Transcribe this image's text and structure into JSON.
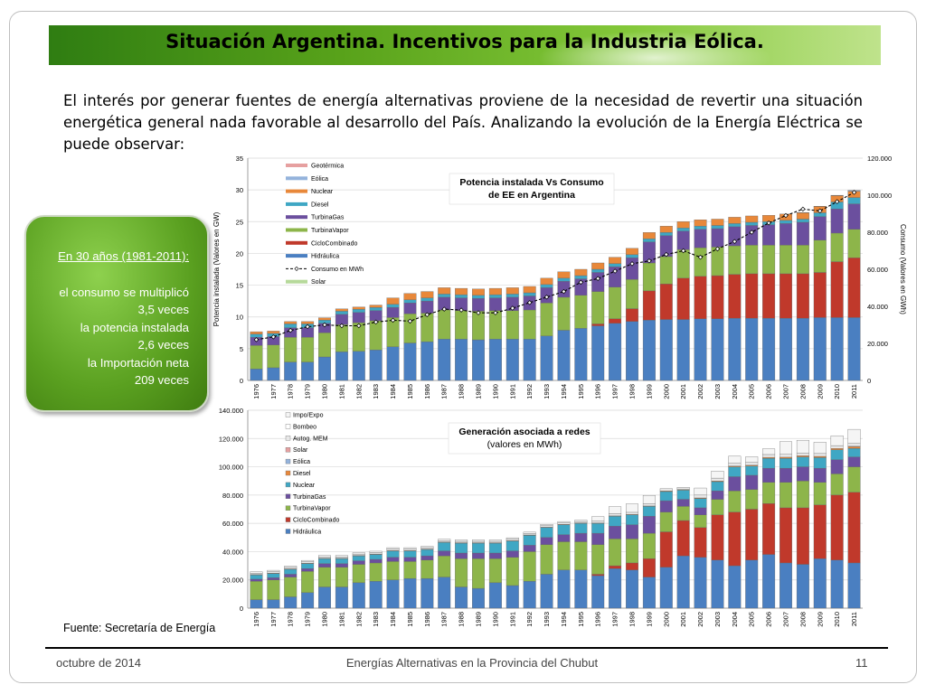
{
  "slide": {
    "title": "Situación Argentina. Incentivos para la Industria Eólica.",
    "intro": "El interés por generar fuentes de energía alternativas proviene de la necesidad de revertir una situación energética general nada favorable al desarrollo del País. Analizando la evolución de la Energía Eléctrica se puede observar:",
    "callout": {
      "heading": "En 30 años (1981-2011):",
      "lines": [
        "el consumo se multiplicó",
        "3,5 veces",
        "la potencia instalada",
        "2,6 veces",
        "la Importación neta",
        "209 veces"
      ]
    },
    "source": "Fuente: Secretaría de Energía",
    "footer": {
      "date": "octubre de 2014",
      "center": "Energías Alternativas en la Provincia del Chubut",
      "page": "11"
    },
    "colors": {
      "banner_dark": "#2f7d12",
      "banner_light": "#bfe38c",
      "callout": "#5aa020"
    }
  },
  "chart_data": [
    {
      "type": "bar",
      "stacked": true,
      "title_lines": [
        "Potencia instalada Vs Consumo",
        "de EE en Argentina"
      ],
      "ylabel": "Potencia instalada (Valores en GW)",
      "y2label": "Consumo (Valores en GWh)",
      "ylim": [
        0,
        35
      ],
      "yticks": [
        "0",
        "5",
        "10",
        "15",
        "20",
        "25",
        "30",
        "35"
      ],
      "y2lim": [
        0,
        120000
      ],
      "y2ticks": [
        "0",
        "20.000",
        "40.000",
        "60.000",
        "80.000",
        "100.000",
        "120.000"
      ],
      "grid": true,
      "legend_position": "top-left",
      "categories": [
        "1976",
        "1977",
        "1978",
        "1979",
        "1980",
        "1981",
        "1982",
        "1983",
        "1984",
        "1985",
        "1986",
        "1987",
        "1988",
        "1989",
        "1990",
        "1991",
        "1992",
        "1993",
        "1994",
        "1995",
        "1996",
        "1997",
        "1998",
        "1999",
        "2000",
        "2001",
        "2002",
        "2003",
        "2004",
        "2005",
        "2006",
        "2007",
        "2008",
        "2009",
        "2010",
        "2011"
      ],
      "series": [
        {
          "name": "Hidráulica",
          "color": "#4a7fc1",
          "values": [
            1.8,
            2.0,
            2.9,
            2.9,
            3.7,
            4.5,
            4.6,
            4.8,
            5.3,
            5.9,
            6.1,
            6.5,
            6.5,
            6.4,
            6.5,
            6.5,
            6.5,
            7.0,
            7.9,
            8.2,
            8.6,
            9.0,
            9.3,
            9.5,
            9.6,
            9.6,
            9.7,
            9.7,
            9.8,
            9.8,
            9.8,
            9.8,
            9.8,
            9.9,
            9.9,
            9.9
          ]
        },
        {
          "name": "CicloCombinado",
          "color": "#c0392b",
          "values": [
            0,
            0,
            0,
            0,
            0,
            0,
            0,
            0,
            0,
            0,
            0,
            0,
            0,
            0,
            0,
            0,
            0,
            0,
            0,
            0,
            0.3,
            0.7,
            2.0,
            4.6,
            5.6,
            6.5,
            6.7,
            6.8,
            6.9,
            7.0,
            7.0,
            7.0,
            7.0,
            7.1,
            8.8,
            9.4
          ]
        },
        {
          "name": "TurbinaVapor",
          "color": "#8db54a",
          "values": [
            3.7,
            3.6,
            3.9,
            3.9,
            3.8,
            4.3,
            4.5,
            4.6,
            4.6,
            4.6,
            4.5,
            4.6,
            4.5,
            4.5,
            4.5,
            4.5,
            4.6,
            5.2,
            5.2,
            5.2,
            5.1,
            5.0,
            4.6,
            4.4,
            4.3,
            4.5,
            4.5,
            4.5,
            4.5,
            4.5,
            4.5,
            4.5,
            4.5,
            5.1,
            4.5,
            4.5
          ]
        },
        {
          "name": "TurbinaGas",
          "color": "#6b4f9e",
          "values": [
            1.3,
            1.3,
            1.5,
            1.5,
            1.5,
            1.6,
            1.6,
            1.6,
            1.6,
            1.7,
            1.9,
            2.0,
            2.0,
            2.0,
            2.0,
            2.1,
            2.2,
            2.4,
            2.5,
            2.6,
            3.0,
            3.2,
            3.4,
            3.3,
            3.3,
            2.9,
            2.9,
            2.9,
            3.0,
            3.1,
            3.2,
            3.4,
            3.6,
            3.7,
            3.8,
            4.0
          ]
        },
        {
          "name": "Diesel",
          "color": "#3fa7c4",
          "values": [
            0.5,
            0.5,
            0.6,
            0.6,
            0.5,
            0.5,
            0.5,
            0.5,
            0.5,
            0.5,
            0.5,
            0.5,
            0.5,
            0.5,
            0.5,
            0.5,
            0.5,
            0.5,
            0.5,
            0.5,
            0.5,
            0.5,
            0.5,
            0.5,
            0.5,
            0.5,
            0.5,
            0.5,
            0.5,
            0.5,
            0.5,
            0.5,
            0.5,
            0.6,
            1.1,
            1.0
          ]
        },
        {
          "name": "Nuclear",
          "color": "#e8883a",
          "values": [
            0.37,
            0.37,
            0.37,
            0.37,
            0.37,
            0.37,
            0.37,
            0.37,
            1.0,
            1.0,
            1.0,
            1.0,
            1.0,
            1.0,
            1.0,
            1.0,
            1.0,
            1.0,
            1.0,
            1.0,
            1.0,
            1.0,
            1.0,
            1.0,
            1.0,
            1.0,
            1.0,
            1.0,
            1.0,
            1.0,
            1.0,
            1.0,
            1.0,
            1.0,
            1.0,
            1.0
          ]
        },
        {
          "name": "Eólica",
          "color": "#94b3dc",
          "values": [
            0,
            0,
            0,
            0,
            0,
            0,
            0,
            0,
            0,
            0,
            0,
            0,
            0,
            0,
            0,
            0,
            0,
            0,
            0,
            0,
            0,
            0,
            0,
            0,
            0,
            0,
            0,
            0,
            0,
            0,
            0,
            0,
            0.03,
            0.03,
            0.05,
            0.11
          ]
        },
        {
          "name": "Geotérmica",
          "color": "#e6a0a0",
          "values": [
            0,
            0,
            0,
            0,
            0,
            0,
            0,
            0,
            0,
            0,
            0,
            0,
            0,
            0,
            0,
            0,
            0,
            0,
            0,
            0,
            0,
            0,
            0,
            0,
            0,
            0,
            0,
            0,
            0,
            0,
            0,
            0,
            0,
            0,
            0,
            0
          ]
        },
        {
          "name": "Solar",
          "color": "#b6d99a",
          "values": [
            0,
            0,
            0,
            0,
            0,
            0,
            0,
            0,
            0,
            0,
            0,
            0,
            0,
            0,
            0,
            0,
            0,
            0,
            0,
            0,
            0,
            0,
            0,
            0,
            0,
            0,
            0,
            0,
            0,
            0,
            0,
            0,
            0,
            0,
            0,
            0
          ]
        }
      ],
      "line_series": {
        "name": "Consumo en MWh",
        "axis": "secondary",
        "values": [
          22000,
          23500,
          27000,
          29000,
          30000,
          29500,
          29500,
          31500,
          32500,
          32000,
          35500,
          38500,
          38000,
          36500,
          36500,
          39000,
          42000,
          45000,
          48000,
          53000,
          55000,
          59000,
          63000,
          64500,
          68000,
          70000,
          66500,
          71000,
          75000,
          80000,
          85000,
          89000,
          92500,
          91500,
          96500,
          101500
        ]
      }
    },
    {
      "type": "bar",
      "stacked": true,
      "title_lines": [
        "Generación asociada a redes",
        "(valores en MWh)"
      ],
      "ylim": [
        0,
        140000
      ],
      "yticks": [
        "0",
        "20.000",
        "40.000",
        "60.000",
        "80.000",
        "100.000",
        "120.000",
        "140.000"
      ],
      "grid": true,
      "legend_position": "top-left",
      "categories": [
        "1976",
        "1977",
        "1978",
        "1979",
        "1980",
        "1981",
        "1982",
        "1983",
        "1984",
        "1985",
        "1986",
        "1987",
        "1988",
        "1989",
        "1990",
        "1991",
        "1992",
        "1993",
        "1994",
        "1995",
        "1996",
        "1997",
        "1998",
        "1999",
        "2000",
        "2001",
        "2002",
        "2003",
        "2004",
        "2005",
        "2006",
        "2007",
        "2008",
        "2009",
        "2010",
        "2011"
      ],
      "series": [
        {
          "name": "Hidráulica",
          "color": "#4a7fc1",
          "values": [
            6000,
            6000,
            8000,
            11000,
            15000,
            15000,
            18000,
            19000,
            20000,
            21000,
            21000,
            22000,
            15000,
            14000,
            18000,
            16000,
            19000,
            24000,
            27000,
            27000,
            23000,
            28000,
            27000,
            22000,
            29000,
            37000,
            36000,
            34000,
            30000,
            34000,
            38000,
            32000,
            31000,
            35000,
            34000,
            32000
          ]
        },
        {
          "name": "CicloCombinado",
          "color": "#c0392b",
          "values": [
            0,
            0,
            0,
            0,
            0,
            0,
            0,
            0,
            0,
            0,
            0,
            0,
            0,
            0,
            0,
            0,
            0,
            0,
            0,
            0,
            1000,
            2000,
            5000,
            13000,
            25000,
            25000,
            21000,
            32000,
            38000,
            36000,
            36000,
            39000,
            40000,
            38000,
            46000,
            50000
          ]
        },
        {
          "name": "TurbinaVapor",
          "color": "#8db54a",
          "values": [
            13000,
            14000,
            14000,
            15000,
            14000,
            14000,
            13000,
            13000,
            13000,
            12000,
            13000,
            15000,
            20000,
            21000,
            17000,
            20000,
            21000,
            21000,
            20000,
            20000,
            21000,
            19000,
            17000,
            18000,
            14000,
            10000,
            9000,
            11000,
            15000,
            14000,
            15000,
            18000,
            19000,
            16000,
            15000,
            18000
          ]
        },
        {
          "name": "TurbinaGas",
          "color": "#6b4f9e",
          "values": [
            1500,
            1500,
            2000,
            2000,
            2500,
            2500,
            2500,
            2500,
            3000,
            3000,
            3000,
            3500,
            4000,
            4000,
            4000,
            4500,
            4500,
            5000,
            5000,
            6000,
            8000,
            9000,
            10000,
            12000,
            8000,
            5000,
            5000,
            6000,
            10000,
            10000,
            10000,
            10000,
            10000,
            10000,
            10000,
            7000
          ]
        },
        {
          "name": "Nuclear",
          "color": "#3fa7c4",
          "values": [
            3000,
            3000,
            3500,
            3500,
            3500,
            3500,
            3500,
            3500,
            4500,
            4500,
            4500,
            6000,
            7000,
            7000,
            7000,
            7000,
            7000,
            7000,
            7000,
            7000,
            7000,
            7000,
            7000,
            7000,
            6500,
            6500,
            6500,
            6500,
            7000,
            6500,
            7000,
            7000,
            7000,
            7500,
            7000,
            6000
          ]
        },
        {
          "name": "Diesel",
          "color": "#e8883a",
          "values": [
            300,
            300,
            300,
            300,
            300,
            300,
            300,
            300,
            300,
            300,
            300,
            300,
            300,
            300,
            300,
            300,
            300,
            300,
            300,
            300,
            300,
            300,
            300,
            300,
            500,
            500,
            500,
            500,
            500,
            600,
            700,
            800,
            800,
            900,
            1000,
            1200
          ]
        },
        {
          "name": "Eólica",
          "color": "#94b3dc",
          "values": [
            0,
            0,
            0,
            0,
            0,
            0,
            0,
            0,
            0,
            0,
            0,
            0,
            0,
            0,
            0,
            0,
            0,
            0,
            0,
            0,
            0,
            0,
            0,
            0,
            0,
            0,
            0,
            0,
            0,
            0,
            0,
            0,
            0,
            0,
            0,
            300
          ]
        },
        {
          "name": "Solar",
          "color": "#e6a0a0",
          "values": [
            0,
            0,
            0,
            0,
            0,
            0,
            0,
            0,
            0,
            0,
            0,
            0,
            0,
            0,
            0,
            0,
            0,
            0,
            0,
            0,
            0,
            0,
            0,
            0,
            0,
            0,
            0,
            0,
            0,
            0,
            0,
            0,
            0,
            0,
            0,
            0
          ]
        },
        {
          "name": "Autog. MEM",
          "color": "#e8e8e8",
          "values": [
            1000,
            1000,
            1000,
            1000,
            1000,
            1000,
            1000,
            1000,
            1000,
            1000,
            1000,
            1000,
            1000,
            1000,
            1000,
            1000,
            1000,
            1000,
            1000,
            1000,
            1500,
            1500,
            1500,
            1500,
            1500,
            1500,
            2000,
            2000,
            2000,
            2000,
            2000,
            2000,
            2000,
            2000,
            2000,
            2000
          ]
        },
        {
          "name": "Bombeo",
          "color": "#ffffff",
          "values": [
            0,
            0,
            0,
            0,
            0,
            0,
            0,
            0,
            0,
            0,
            0,
            0,
            0,
            0,
            0,
            0,
            0,
            0,
            0,
            0,
            0,
            0,
            0,
            0,
            0,
            0,
            0,
            0,
            0,
            0,
            0,
            0,
            0,
            0,
            0,
            0
          ]
        },
        {
          "name": "Impo/Expo",
          "color": "#f5f5f5",
          "values": [
            1000,
            1000,
            1000,
            1000,
            1000,
            1000,
            1000,
            1000,
            1000,
            1000,
            1000,
            1000,
            1000,
            1000,
            1000,
            1000,
            1000,
            1000,
            1000,
            1000,
            3000,
            5000,
            6000,
            6000,
            0,
            0,
            5000,
            5000,
            5000,
            4000,
            4000,
            9000,
            9000,
            8000,
            7000,
            10000
          ]
        }
      ]
    }
  ]
}
